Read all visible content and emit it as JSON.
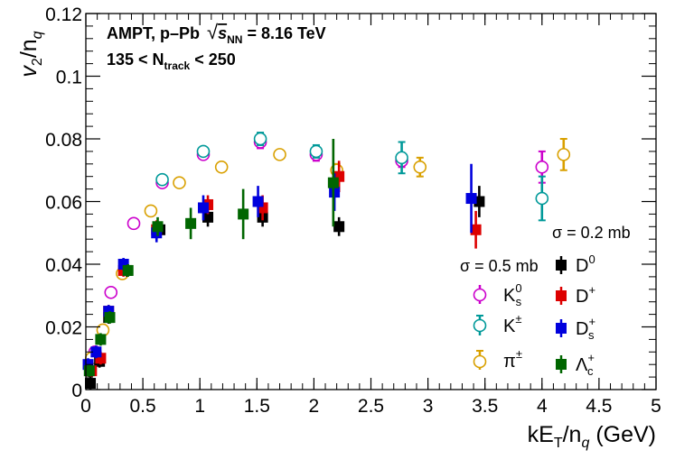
{
  "chart_data": {
    "type": "scatter",
    "title": "",
    "xlabel": "kE_T/n_q (GeV)",
    "ylabel": "v_2/n_q",
    "xlim": [
      0,
      5
    ],
    "ylim": [
      0,
      0.12
    ],
    "xticks": [
      0,
      0.5,
      1,
      1.5,
      2,
      2.5,
      3,
      3.5,
      4,
      4.5,
      5
    ],
    "xtick_labels": [
      "0",
      "0.5",
      "1",
      "1.5",
      "2",
      "2.5",
      "3",
      "3.5",
      "4",
      "4.5",
      "5"
    ],
    "yticks": [
      0,
      0.02,
      0.04,
      0.06,
      0.08,
      0.1,
      0.12
    ],
    "ytick_labels": [
      "0",
      "0.02",
      "0.04",
      "0.06",
      "0.08",
      "0.1",
      "0.12"
    ],
    "annotations": {
      "line1_prefix": "AMPT, p–Pb",
      "sqrt_symbol": "√",
      "s": "s",
      "nn": "NN",
      "line1_suffix": " = 8.16 TeV",
      "line2_prefix": "135 < N",
      "track": "track",
      "line2_suffix": " < 250"
    },
    "legend": {
      "header_02": "σ = 0.2 mb",
      "header_05": "σ = 0.5 mb",
      "labels": {
        "D0": {
          "base": "D",
          "sup": "0",
          "sub": ""
        },
        "Dp": {
          "base": "D",
          "sup": "+",
          "sub": ""
        },
        "Ds": {
          "base": "D",
          "sup": "+",
          "sub": "s"
        },
        "Lc": {
          "base": "Λ",
          "sup": "+",
          "sub": "c"
        },
        "K0s": {
          "base": "K",
          "sup": "0",
          "sub": "s"
        },
        "Kpm": {
          "base": "K",
          "sup": "±",
          "sub": ""
        },
        "pi": {
          "base": "π",
          "sup": "±",
          "sub": ""
        }
      }
    },
    "series": [
      {
        "name": "K0s",
        "marker": "open-circle",
        "color": "#cc00cc",
        "x": [
          0.08,
          0.22,
          0.42,
          0.67,
          1.03,
          1.53,
          2.02,
          2.77,
          4.0
        ],
        "y": [
          0.012,
          0.031,
          0.053,
          0.066,
          0.075,
          0.079,
          0.075,
          0.073,
          0.071
        ],
        "err": [
          0.001,
          0.001,
          0.001,
          0.001,
          0.001,
          0.002,
          0.002,
          0.002,
          0.005
        ]
      },
      {
        "name": "Kpm",
        "marker": "open-circle",
        "color": "#009999",
        "x": [
          0.67,
          1.03,
          1.53,
          2.02,
          2.77,
          4.0
        ],
        "y": [
          0.067,
          0.076,
          0.08,
          0.076,
          0.074,
          0.061
        ],
        "err": [
          0.001,
          0.001,
          0.002,
          0.002,
          0.005,
          0.007
        ]
      },
      {
        "name": "pi",
        "marker": "open-circle",
        "color": "#d9a000",
        "x": [
          0.05,
          0.15,
          0.32,
          0.57,
          0.82,
          1.19,
          1.7,
          2.2,
          2.93,
          4.19
        ],
        "y": [
          0.01,
          0.019,
          0.037,
          0.057,
          0.066,
          0.071,
          0.075,
          0.07,
          0.071,
          0.075
        ],
        "err": [
          0.001,
          0.001,
          0.001,
          0.001,
          0.001,
          0.001,
          0.001,
          0.002,
          0.003,
          0.005
        ]
      },
      {
        "name": "D0",
        "marker": "square",
        "color": "#000000",
        "x": [
          0.04,
          0.12,
          0.2,
          0.36,
          0.65,
          1.07,
          1.55,
          2.22,
          3.45
        ],
        "y": [
          0.002,
          0.009,
          0.023,
          0.038,
          0.051,
          0.055,
          0.055,
          0.052,
          0.06
        ],
        "err": [
          0.002,
          0.002,
          0.002,
          0.002,
          0.002,
          0.003,
          0.003,
          0.003,
          0.005
        ]
      },
      {
        "name": "Dp",
        "marker": "square",
        "color": "#dd0000",
        "x": [
          0.05,
          0.13,
          0.2,
          0.33,
          0.62,
          1.07,
          1.55,
          2.22,
          3.42
        ],
        "y": [
          0.006,
          0.01,
          0.025,
          0.038,
          0.051,
          0.059,
          0.058,
          0.068,
          0.051
        ],
        "err": [
          0.002,
          0.002,
          0.002,
          0.002,
          0.003,
          0.003,
          0.004,
          0.005,
          0.006
        ]
      },
      {
        "name": "Ds",
        "marker": "square",
        "color": "#0000dd",
        "x": [
          0.02,
          0.09,
          0.2,
          0.33,
          0.62,
          1.03,
          1.51,
          2.18,
          3.38
        ],
        "y": [
          0.008,
          0.012,
          0.025,
          0.04,
          0.05,
          0.058,
          0.06,
          0.063,
          0.061
        ],
        "err": [
          0.002,
          0.002,
          0.002,
          0.002,
          0.003,
          0.004,
          0.005,
          0.006,
          0.011
        ]
      },
      {
        "name": "Lc",
        "marker": "square",
        "color": "#006600",
        "x": [
          0.03,
          0.13,
          0.21,
          0.37,
          0.63,
          0.92,
          1.38,
          2.17
        ],
        "y": [
          0.006,
          0.016,
          0.023,
          0.038,
          0.052,
          0.053,
          0.056,
          0.066
        ],
        "err": [
          0.002,
          0.002,
          0.002,
          0.002,
          0.003,
          0.005,
          0.008,
          0.014
        ]
      }
    ]
  }
}
